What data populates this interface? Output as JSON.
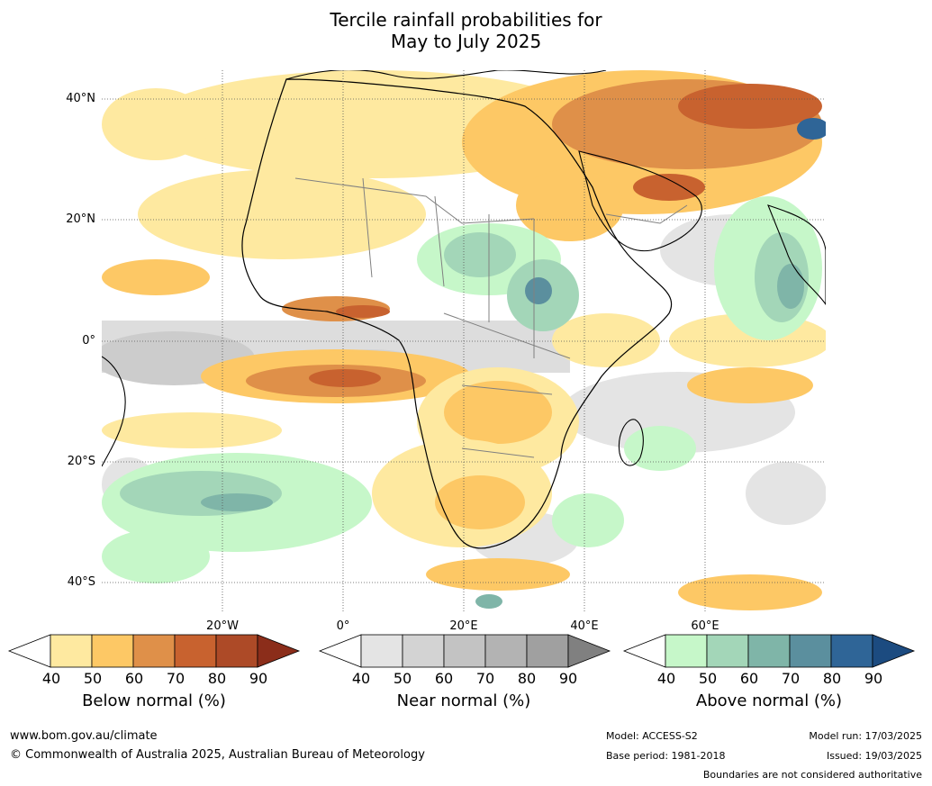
{
  "title_line1": "Tercile rainfall probabilities for",
  "title_line2": "May to July 2025",
  "lat_labels": [
    "40°N",
    "20°N",
    "0°",
    "20°S",
    "40°S"
  ],
  "lon_labels": [
    "20°W",
    "0°",
    "20°E",
    "40°E",
    "60°E"
  ],
  "colorbars": [
    {
      "label": "Below normal (%)",
      "ticks": [
        "40",
        "50",
        "60",
        "70",
        "80",
        "90"
      ],
      "colors": [
        "#ffffff",
        "#fee9a0",
        "#fdc865",
        "#df9049",
        "#c8622f",
        "#ad4a27",
        "#8b2d1a"
      ]
    },
    {
      "label": "Near normal (%)",
      "ticks": [
        "40",
        "50",
        "60",
        "70",
        "80",
        "90"
      ],
      "colors": [
        "#ffffff",
        "#e4e4e4",
        "#d3d3d3",
        "#c3c3c3",
        "#b3b3b3",
        "#a0a0a0",
        "#808080"
      ]
    },
    {
      "label": "Above normal (%)",
      "ticks": [
        "40",
        "50",
        "60",
        "70",
        "80",
        "90"
      ],
      "colors": [
        "#ffffff",
        "#c6f7c9",
        "#a3d6b8",
        "#7fb5a8",
        "#5b8f9e",
        "#2f6597",
        "#1c4b80"
      ]
    }
  ],
  "footer": {
    "url": "www.bom.gov.au/climate",
    "copyright": "© Commonwealth of Australia 2025, Australian Bureau of Meteorology",
    "model": "Model: ACCESS-S2",
    "base_period": "Base period: 1981-2018",
    "model_run": "Model run: 17/03/2025",
    "issued": "Issued: 19/03/2025",
    "disclaimer": "Boundaries are not considered authoritative"
  }
}
